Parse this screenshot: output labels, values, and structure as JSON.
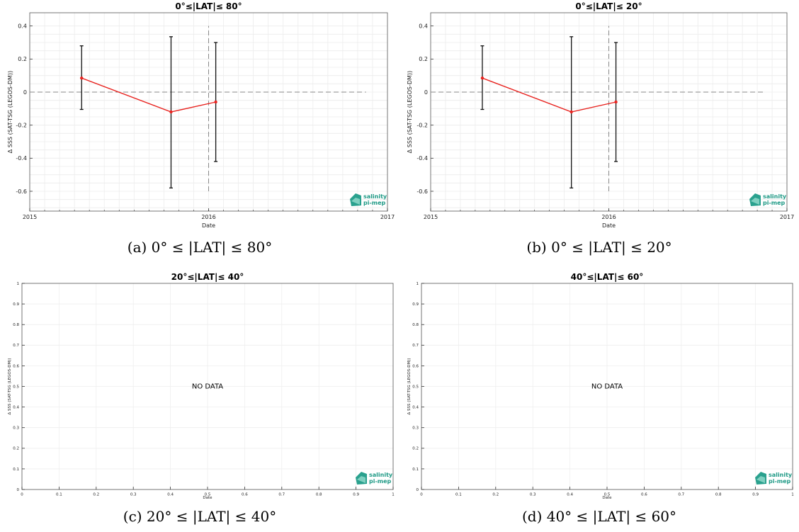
{
  "panels": [
    {
      "caption": "(a) 0° ≤ |LAT| ≤ 80°",
      "chart": {
        "type": "line",
        "title": "0°≤|LAT|≤ 80°",
        "xlabel": "Date",
        "ylabel": "Δ SSS (SAT-TSG (LEGOS-DM))",
        "xlim": [
          2015.0,
          2017.0
        ],
        "ylim": [
          -0.72,
          0.48
        ],
        "xticks": [
          {
            "value": 2015.0,
            "label": "2015"
          },
          {
            "value": 2016.0,
            "label": "2016"
          },
          {
            "value": 2017.0,
            "label": "2017"
          }
        ],
        "yticks": [
          {
            "value": -0.6,
            "label": "-0.6"
          },
          {
            "value": -0.4,
            "label": "-0.4"
          },
          {
            "value": -0.2,
            "label": "-0.2"
          },
          {
            "value": 0,
            "label": "0"
          },
          {
            "value": 0.2,
            "label": "0.2"
          },
          {
            "value": 0.4,
            "label": "0.4"
          }
        ],
        "grid": true,
        "series": [
          {
            "color": "#e8231f",
            "points": [
              {
                "x": "2015-04",
                "xv": 2015.29,
                "y": 0.085,
                "err_low": -0.105,
                "err_high": 0.28
              },
              {
                "x": "2015-10",
                "xv": 2015.79,
                "y": -0.12,
                "err_low": -0.58,
                "err_high": 0.335
              },
              {
                "x": "2016-01",
                "xv": 2016.04,
                "y": -0.06,
                "err_low": -0.42,
                "err_high": 0.3
              }
            ]
          }
        ],
        "hline": {
          "y": 0,
          "x_from": 2015.0,
          "x_to": 2016.88
        },
        "vline": {
          "x": 2016.0,
          "y_from": -0.6,
          "y_to": 0.4
        },
        "logo": [
          "salinity",
          "pi-mep"
        ],
        "no_data": ""
      }
    },
    {
      "caption": "(b) 0° ≤ |LAT| ≤ 20°",
      "chart": {
        "type": "line",
        "title": "0°≤|LAT|≤ 20°",
        "xlabel": "Date",
        "ylabel": "Δ SSS (SAT-TSG (LEGOS-DM))",
        "xlim": [
          2015.0,
          2017.0
        ],
        "ylim": [
          -0.72,
          0.48
        ],
        "xticks": [
          {
            "value": 2015.0,
            "label": "2015"
          },
          {
            "value": 2016.0,
            "label": "2016"
          },
          {
            "value": 2017.0,
            "label": "2017"
          }
        ],
        "yticks": [
          {
            "value": -0.6,
            "label": "-0.6"
          },
          {
            "value": -0.4,
            "label": "-0.4"
          },
          {
            "value": -0.2,
            "label": "-0.2"
          },
          {
            "value": 0,
            "label": "0"
          },
          {
            "value": 0.2,
            "label": "0.2"
          },
          {
            "value": 0.4,
            "label": "0.4"
          }
        ],
        "grid": true,
        "series": [
          {
            "color": "#e8231f",
            "points": [
              {
                "x": "2015-04",
                "xv": 2015.29,
                "y": 0.085,
                "err_low": -0.105,
                "err_high": 0.28
              },
              {
                "x": "2015-10",
                "xv": 2015.79,
                "y": -0.12,
                "err_low": -0.58,
                "err_high": 0.335
              },
              {
                "x": "2016-01",
                "xv": 2016.04,
                "y": -0.06,
                "err_low": -0.42,
                "err_high": 0.3
              }
            ]
          }
        ],
        "hline": {
          "y": 0,
          "x_from": 2015.0,
          "x_to": 2016.88
        },
        "vline": {
          "x": 2016.0,
          "y_from": -0.6,
          "y_to": 0.4
        },
        "logo": [
          "salinity",
          "pi-mep"
        ],
        "no_data": ""
      }
    },
    {
      "caption": "(c) 20° ≤ |LAT| ≤ 40°",
      "chart": {
        "type": "line",
        "title": "20°≤|LAT|≤ 40°",
        "xlabel": "Date",
        "ylabel": "Δ SSS (SAT-TSG (LEGOS-DM))",
        "xlim": [
          0,
          1
        ],
        "ylim": [
          0,
          1
        ],
        "xticks": [
          {
            "value": 0,
            "label": "0"
          },
          {
            "value": 0.1,
            "label": "0.1"
          },
          {
            "value": 0.2,
            "label": "0.2"
          },
          {
            "value": 0.3,
            "label": "0.3"
          },
          {
            "value": 0.4,
            "label": "0.4"
          },
          {
            "value": 0.5,
            "label": "0.5"
          },
          {
            "value": 0.6,
            "label": "0.6"
          },
          {
            "value": 0.7,
            "label": "0.7"
          },
          {
            "value": 0.8,
            "label": "0.8"
          },
          {
            "value": 0.9,
            "label": "0.9"
          },
          {
            "value": 1,
            "label": "1"
          }
        ],
        "yticks": [
          {
            "value": 0,
            "label": "0"
          },
          {
            "value": 0.1,
            "label": "0.1"
          },
          {
            "value": 0.2,
            "label": "0.2"
          },
          {
            "value": 0.3,
            "label": "0.3"
          },
          {
            "value": 0.4,
            "label": "0.4"
          },
          {
            "value": 0.5,
            "label": "0.5"
          },
          {
            "value": 0.6,
            "label": "0.6"
          },
          {
            "value": 0.7,
            "label": "0.7"
          },
          {
            "value": 0.8,
            "label": "0.8"
          },
          {
            "value": 0.9,
            "label": "0.9"
          },
          {
            "value": 1,
            "label": "1"
          }
        ],
        "grid": true,
        "series": [],
        "logo": [
          "salinity",
          "pi-mep"
        ],
        "no_data": "NO DATA"
      }
    },
    {
      "caption": "(d) 40° ≤ |LAT| ≤ 60°",
      "chart": {
        "type": "line",
        "title": "40°≤|LAT|≤ 60°",
        "xlabel": "Date",
        "ylabel": "Δ SSS (SAT-TSG (LEGOS-DM))",
        "xlim": [
          0,
          1
        ],
        "ylim": [
          0,
          1
        ],
        "xticks": [
          {
            "value": 0,
            "label": "0"
          },
          {
            "value": 0.1,
            "label": "0.1"
          },
          {
            "value": 0.2,
            "label": "0.2"
          },
          {
            "value": 0.3,
            "label": "0.3"
          },
          {
            "value": 0.4,
            "label": "0.4"
          },
          {
            "value": 0.5,
            "label": "0.5"
          },
          {
            "value": 0.6,
            "label": "0.6"
          },
          {
            "value": 0.7,
            "label": "0.7"
          },
          {
            "value": 0.8,
            "label": "0.8"
          },
          {
            "value": 0.9,
            "label": "0.9"
          },
          {
            "value": 1,
            "label": "1"
          }
        ],
        "yticks": [
          {
            "value": 0,
            "label": "0"
          },
          {
            "value": 0.1,
            "label": "0.1"
          },
          {
            "value": 0.2,
            "label": "0.2"
          },
          {
            "value": 0.3,
            "label": "0.3"
          },
          {
            "value": 0.4,
            "label": "0.4"
          },
          {
            "value": 0.5,
            "label": "0.5"
          },
          {
            "value": 0.6,
            "label": "0.6"
          },
          {
            "value": 0.7,
            "label": "0.7"
          },
          {
            "value": 0.8,
            "label": "0.8"
          },
          {
            "value": 0.9,
            "label": "0.9"
          },
          {
            "value": 1,
            "label": "1"
          }
        ],
        "grid": true,
        "series": [],
        "logo": [
          "salinity",
          "pi-mep"
        ],
        "no_data": "NO DATA"
      }
    }
  ],
  "chart_data": [
    {
      "type": "line",
      "title": "0°≤|LAT|≤ 80°",
      "xlabel": "Date",
      "ylabel": "Δ SSS (SAT-TSG (LEGOS-DM))",
      "xlim": [
        "2015-01",
        "2017-01"
      ],
      "ylim": [
        -0.72,
        0.48
      ],
      "grid": true,
      "series": [
        {
          "points": [
            {
              "x": "2015-04",
              "y": 0.085,
              "err_low": -0.105,
              "err_high": 0.28
            },
            {
              "x": "2015-10",
              "y": -0.12,
              "err_low": -0.58,
              "err_high": 0.335
            },
            {
              "x": "2016-01",
              "y": -0.06,
              "err_low": -0.42,
              "err_high": 0.3
            }
          ]
        }
      ]
    },
    {
      "type": "line",
      "title": "0°≤|LAT|≤ 20°",
      "xlabel": "Date",
      "ylabel": "Δ SSS (SAT-TSG (LEGOS-DM))",
      "xlim": [
        "2015-01",
        "2017-01"
      ],
      "ylim": [
        -0.72,
        0.48
      ],
      "grid": true,
      "series": [
        {
          "points": [
            {
              "x": "2015-04",
              "y": 0.085,
              "err_low": -0.105,
              "err_high": 0.28
            },
            {
              "x": "2015-10",
              "y": -0.12,
              "err_low": -0.58,
              "err_high": 0.335
            },
            {
              "x": "2016-01",
              "y": -0.06,
              "err_low": -0.42,
              "err_high": 0.3
            }
          ]
        }
      ]
    },
    {
      "type": "line",
      "title": "20°≤|LAT|≤ 40°",
      "xlabel": "Date",
      "ylabel": "Δ SSS (SAT-TSG (LEGOS-DM))",
      "xlim": [
        0,
        1
      ],
      "ylim": [
        0,
        1
      ],
      "grid": true,
      "series": [],
      "annotation": "NO DATA"
    },
    {
      "type": "line",
      "title": "40°≤|LAT|≤ 60°",
      "xlabel": "Date",
      "ylabel": "Δ SSS (SAT-TSG (LEGOS-DM))",
      "xlim": [
        0,
        1
      ],
      "ylim": [
        0,
        1
      ],
      "grid": true,
      "series": [],
      "annotation": "NO DATA"
    }
  ]
}
